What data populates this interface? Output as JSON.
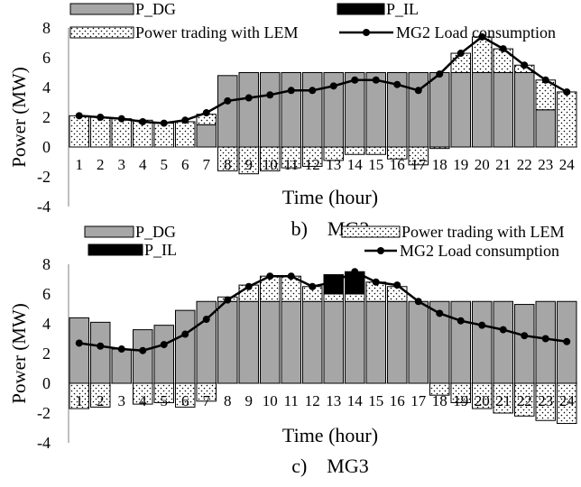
{
  "chart_data": [
    {
      "type": "bar",
      "caption": "b)    MG2",
      "xlabel": "Time (hour)",
      "ylabel": "Power (MW)",
      "ylim": [
        -4,
        8
      ],
      "yticks": [
        -4,
        -2,
        0,
        2,
        4,
        6,
        8
      ],
      "grid": false,
      "legend_placement": "top",
      "categories": [
        "1",
        "2",
        "3",
        "4",
        "5",
        "6",
        "7",
        "8",
        "9",
        "10",
        "11",
        "12",
        "13",
        "14",
        "15",
        "16",
        "17",
        "18",
        "19",
        "20",
        "21",
        "22",
        "23",
        "24"
      ],
      "series": [
        {
          "name": "P_DG",
          "kind": "stacked-bar",
          "pattern": "gray",
          "values": [
            0,
            0,
            0,
            0,
            0,
            0,
            1.5,
            4.8,
            5,
            5,
            5,
            5,
            5,
            5,
            5,
            5,
            5,
            5,
            5,
            5,
            5,
            5,
            2.5,
            0
          ]
        },
        {
          "name": "Power trading with LEM",
          "kind": "stacked-bar",
          "pattern": "dots",
          "values": [
            2.1,
            2.0,
            1.9,
            1.8,
            1.6,
            1.7,
            0.7,
            -1.6,
            -1.8,
            -1.6,
            -1.4,
            -1.3,
            -0.9,
            -0.5,
            -0.5,
            -0.8,
            -1.2,
            -0.1,
            1.3,
            2.4,
            1.6,
            0.5,
            2.0,
            3.7
          ]
        },
        {
          "name": "P_IL",
          "kind": "stacked-bar",
          "pattern": "black",
          "values": [
            0,
            0,
            0,
            0,
            0,
            0,
            0,
            0,
            0,
            0,
            0,
            0,
            0,
            0,
            0,
            0,
            0,
            0,
            0,
            0,
            0,
            0,
            0,
            0
          ]
        },
        {
          "name": "MG2 Load consumption",
          "kind": "line",
          "values": [
            2.1,
            2.0,
            1.9,
            1.7,
            1.6,
            1.8,
            2.3,
            3.1,
            3.3,
            3.5,
            3.8,
            3.8,
            4.1,
            4.5,
            4.5,
            4.2,
            3.8,
            4.9,
            6.3,
            7.4,
            6.6,
            5.5,
            4.5,
            3.7
          ]
        }
      ]
    },
    {
      "type": "bar",
      "caption": "c)    MG3",
      "xlabel": "Time (hour)",
      "ylabel": "Power (MW)",
      "ylim": [
        -4,
        8
      ],
      "yticks": [
        -4,
        -2,
        0,
        2,
        4,
        6,
        8
      ],
      "grid": false,
      "legend_placement": "top",
      "categories": [
        "1",
        "2",
        "3",
        "4",
        "5",
        "6",
        "7",
        "8",
        "9",
        "10",
        "11",
        "12",
        "13",
        "14",
        "15",
        "16",
        "17",
        "18",
        "19",
        "20",
        "21",
        "22",
        "23",
        "24"
      ],
      "series": [
        {
          "name": "P_DG",
          "kind": "stacked-bar",
          "pattern": "gray",
          "values": [
            4.4,
            4.1,
            2.3,
            3.6,
            3.9,
            4.9,
            5.5,
            5.5,
            5.5,
            5.5,
            5.5,
            5.5,
            5.5,
            5.5,
            5.5,
            5.5,
            5.5,
            5.5,
            5.5,
            5.5,
            5.5,
            5.3,
            5.5,
            5.5
          ]
        },
        {
          "name": "Power trading with LEM",
          "kind": "stacked-bar",
          "pattern": "dots",
          "values": [
            -1.7,
            -1.6,
            0,
            -1.4,
            -1.3,
            -1.6,
            -1.2,
            0.3,
            1.1,
            1.7,
            1.7,
            1.0,
            0.5,
            0.5,
            1.3,
            1.0,
            0,
            -0.8,
            -1.3,
            -1.7,
            -2.0,
            -2.2,
            -2.5,
            -2.7
          ]
        },
        {
          "name": "P_IL",
          "kind": "stacked-bar",
          "pattern": "black",
          "values": [
            0,
            0,
            0,
            0,
            0,
            0,
            0,
            0,
            0,
            0,
            0,
            0,
            1.3,
            1.5,
            0,
            0,
            0,
            0,
            0,
            0,
            0,
            0,
            0,
            0
          ]
        },
        {
          "name": "MG2 Load consumption",
          "kind": "line",
          "values": [
            2.7,
            2.5,
            2.3,
            2.2,
            2.6,
            3.3,
            4.3,
            5.6,
            6.5,
            7.2,
            7.2,
            6.5,
            6.8,
            7.5,
            6.8,
            6.6,
            5.5,
            4.7,
            4.2,
            3.9,
            3.6,
            3.2,
            3.0,
            2.8
          ]
        }
      ]
    }
  ]
}
